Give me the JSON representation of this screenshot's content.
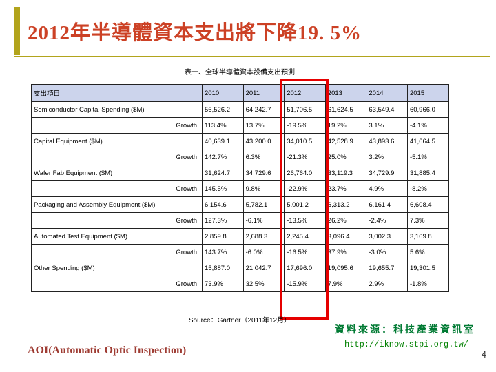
{
  "slide": {
    "title": "2012年半導體資本支出將下降19. 5%",
    "footer_left": "AOI(Automatic Optic Inspection)",
    "footer_source": "資料來源：科技產業資訊室",
    "footer_url": "http://iknow.stpi.org.tw/",
    "page_number": "4"
  },
  "table": {
    "caption": "表一、全球半導體資本設備支出預測",
    "source": "Source：Gartner（2011年12月）",
    "growth_row_label": "Growth",
    "highlight_column": "2012",
    "headers": [
      "支出項目",
      "2010",
      "2011",
      "2012",
      "2013",
      "2014",
      "2015"
    ],
    "rows": [
      {
        "label": "Semiconductor Capital Spending ($M)",
        "values": [
          "56,526.2",
          "64,242.7",
          "51,706.5",
          "61,624.5",
          "63,549.4",
          "60,966.0"
        ]
      },
      {
        "label": "Growth",
        "values": [
          "113.4%",
          "13.7%",
          "-19.5%",
          "19.2%",
          "3.1%",
          "-4.1%"
        ]
      },
      {
        "label": "Capital Equipment ($M)",
        "values": [
          "40,639.1",
          "43,200.0",
          "34,010.5",
          "42,528.9",
          "43,893.6",
          "41,664.5"
        ]
      },
      {
        "label": "Growth",
        "values": [
          "142.7%",
          "6.3%",
          "-21.3%",
          "25.0%",
          "3.2%",
          "-5.1%"
        ]
      },
      {
        "label": "Wafer Fab Equipment ($M)",
        "values": [
          "31,624.7",
          "34,729.6",
          "26,764.0",
          "33,119.3",
          "34,729.9",
          "31,885.4"
        ]
      },
      {
        "label": "Growth",
        "values": [
          "145.5%",
          "9.8%",
          "-22.9%",
          "23.7%",
          "4.9%",
          "-8.2%"
        ]
      },
      {
        "label": "Packaging and Assembly Equipment ($M)",
        "values": [
          "6,154.6",
          "5,782.1",
          "5,001.2",
          "6,313.2",
          "6,161.4",
          "6,608.4"
        ]
      },
      {
        "label": "Growth",
        "values": [
          "127.3%",
          "-6.1%",
          "-13.5%",
          "26.2%",
          "-2.4%",
          "7.3%"
        ]
      },
      {
        "label": "Automated Test Equipment ($M)",
        "values": [
          "2,859.8",
          "2,688.3",
          "2,245.4",
          "3,096.4",
          "3,002.3",
          "3,169.8"
        ]
      },
      {
        "label": "Growth",
        "values": [
          "143.7%",
          "-6.0%",
          "-16.5%",
          "37.9%",
          "-3.0%",
          "5.6%"
        ]
      },
      {
        "label": "Other Spending ($M)",
        "values": [
          "15,887.0",
          "21,042.7",
          "17,696.0",
          "19,095.6",
          "19,655.7",
          "19,301.5"
        ]
      },
      {
        "label": "Growth",
        "values": [
          "73.9%",
          "32.5%",
          "-15.9%",
          "7.9%",
          "2.9%",
          "-1.8%"
        ]
      }
    ]
  },
  "colors": {
    "title_text": "#cc4125",
    "accent_bar": "#b2a41c",
    "highlight_box": "#e60000",
    "table_header_bg": "#ccd4ec",
    "footer_source_green": "#007a33",
    "footer_url_green": "#008000",
    "footer_aoi_red": "#9e3b32"
  }
}
